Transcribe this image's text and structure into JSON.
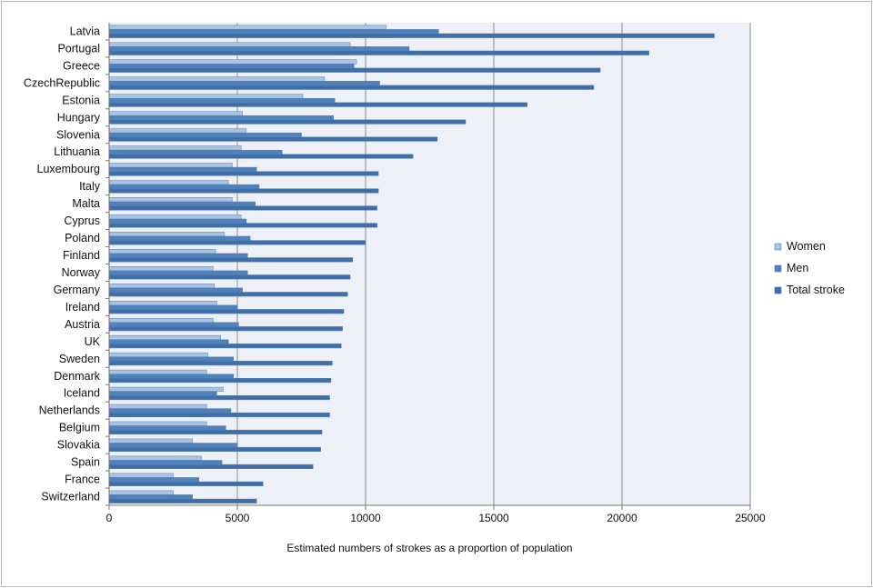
{
  "chart_data": {
    "type": "bar",
    "orientation": "horizontal",
    "title": "",
    "xlabel": "Estimated numbers of strokes as a proportion of population",
    "ylabel": "",
    "xlim": [
      0,
      25000
    ],
    "xticks": [
      0,
      5000,
      10000,
      15000,
      20000,
      25000
    ],
    "grid": true,
    "legend_position": "right",
    "categories": [
      "Latvia",
      "Portugal",
      "Greece",
      "CzechRepublic",
      "Estonia",
      "Hungary",
      "Slovenia",
      "Lithuania",
      "Luxembourg",
      "Italy",
      "Malta",
      "Cyprus",
      "Poland",
      "Finland",
      "Norway",
      "Germany",
      "Ireland",
      "Austria",
      "UK",
      "Sweden",
      "Denmark",
      "Iceland",
      "Netherlands",
      "Belgium",
      "Slovakia",
      "Spain",
      "France",
      "Switzerland"
    ],
    "series": [
      {
        "name": "Women",
        "color": "#a9c3e4",
        "values": [
          10800,
          9400,
          9650,
          8400,
          7550,
          5200,
          5350,
          5150,
          4800,
          4650,
          4800,
          5150,
          4500,
          4150,
          4050,
          4100,
          4200,
          4050,
          4350,
          3850,
          3800,
          4450,
          3800,
          3800,
          3250,
          3600,
          2500,
          2500
        ]
      },
      {
        "name": "Men",
        "color": "#4f81bd",
        "values": [
          12850,
          11700,
          9550,
          10550,
          8800,
          8750,
          7500,
          6750,
          5750,
          5850,
          5700,
          5350,
          5500,
          5400,
          5400,
          5200,
          5000,
          5050,
          4650,
          4850,
          4850,
          4200,
          4750,
          4550,
          5000,
          4400,
          3500,
          3250
        ]
      },
      {
        "name": "Total stroke",
        "color": "#3f6fa8",
        "values": [
          23600,
          21050,
          19150,
          18900,
          16300,
          13900,
          12800,
          11850,
          10500,
          10500,
          10450,
          10450,
          10000,
          9500,
          9400,
          9300,
          9150,
          9100,
          9050,
          8700,
          8650,
          8600,
          8600,
          8300,
          8250,
          7950,
          6000,
          5750
        ]
      }
    ]
  }
}
